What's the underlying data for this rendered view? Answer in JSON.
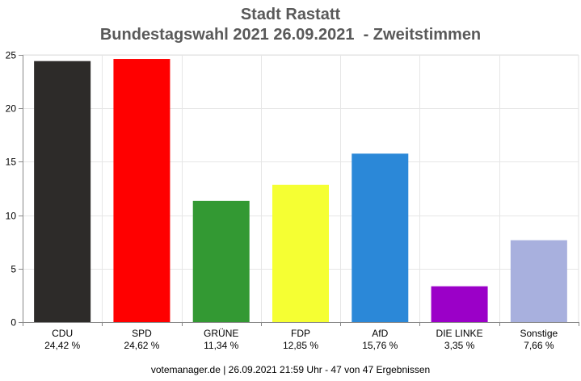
{
  "title_line1": "Stadt Rastatt",
  "title_line2": "Bundestagswahl 2021 26.09.2021  - Zweitstimmen",
  "footer": "votemanager.de | 26.09.2021 21:59 Uhr - 47 von 47 Ergebnissen",
  "chart_data": {
    "type": "bar",
    "title": "Stadt Rastatt / Bundestagswahl 2021 26.09.2021 - Zweitstimmen",
    "categories": [
      "CDU",
      "SPD",
      "GRÜNE",
      "FDP",
      "AfD",
      "DIE LINKE",
      "Sonstige"
    ],
    "values": [
      24.42,
      24.62,
      11.34,
      12.85,
      15.76,
      3.35,
      7.66
    ],
    "value_labels": [
      "24,42 %",
      "24,62 %",
      "11,34 %",
      "12,85 %",
      "15,76 %",
      "3,35 %",
      "7,66 %"
    ],
    "colors": [
      "#2d2b29",
      "#ff0000",
      "#339933",
      "#f5ff33",
      "#2b88d8",
      "#9b00c8",
      "#a8b0de"
    ],
    "ylim": [
      0,
      25
    ],
    "yticks": [
      0,
      5,
      10,
      15,
      20,
      25
    ],
    "grid": true
  }
}
